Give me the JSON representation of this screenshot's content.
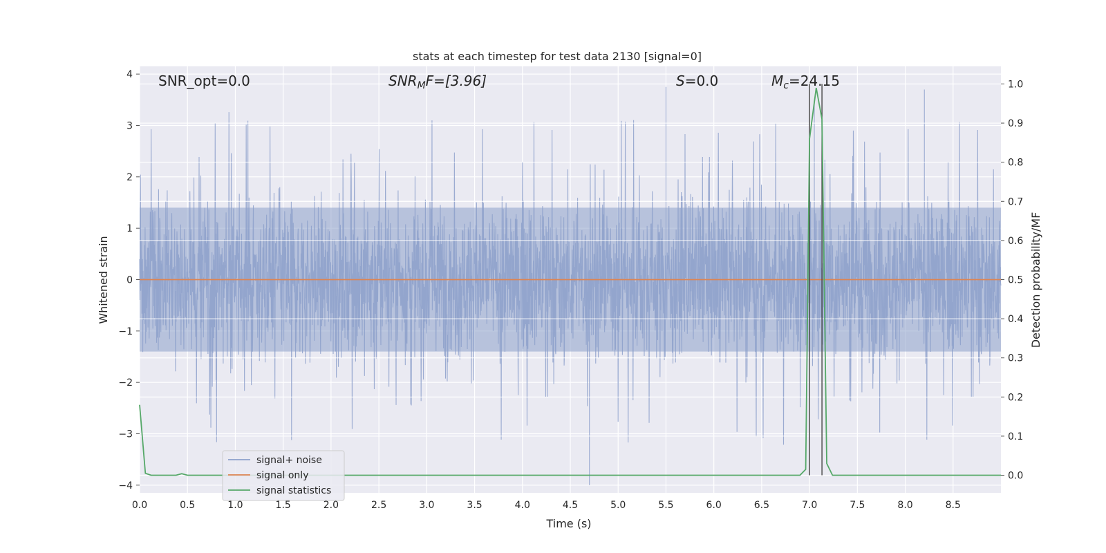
{
  "chart_data": {
    "type": "line",
    "title": "stats at each timestep for test data 2130 [signal=0]",
    "xlabel": "Time (s)",
    "ylabel_left": "Whitened strain",
    "ylabel_right": "Detection probability/MF",
    "xlim": [
      0.0,
      9.0
    ],
    "ylim_left": [
      -4.15,
      4.15
    ],
    "ylim_right": [
      -0.045,
      1.045
    ],
    "x_ticks": [
      "0.0",
      "0.5",
      "1.0",
      "1.5",
      "2.0",
      "2.5",
      "3.0",
      "3.5",
      "4.0",
      "4.5",
      "5.0",
      "5.5",
      "6.0",
      "6.5",
      "7.0",
      "7.5",
      "8.0",
      "8.5"
    ],
    "y_ticks_left": [
      "−4",
      "−3",
      "−2",
      "−1",
      "0",
      "1",
      "2",
      "3",
      "4"
    ],
    "y_ticks_right": [
      "0.0",
      "0.1",
      "0.2",
      "0.3",
      "0.4",
      "0.5",
      "0.6",
      "0.7",
      "0.8",
      "0.9",
      "1.0"
    ],
    "grid": true,
    "legend_position": "lower-left",
    "annotations": [
      {
        "id": "snr-opt",
        "text": "SNR_opt=0.0"
      },
      {
        "id": "snr-mf",
        "prefix": "SNR",
        "sub": "M",
        "suffix": "F=[3.96]"
      },
      {
        "id": "s-val",
        "prefix": "S",
        "suffix": "=0.0"
      },
      {
        "id": "mc-val",
        "prefix": "M",
        "sub": "c",
        "suffix": "=24.15"
      }
    ],
    "vertical_lines_x": [
      7.0,
      7.13
    ],
    "series": [
      {
        "name": "signal+ noise",
        "axis": "left",
        "color": "#8da0cb",
        "style": "noise",
        "note_values": "dense whitened noise, core amplitude about ±1.4 with spikes reaching about ±3.3 (max 3.75, min -4.0 at x≈4.7)"
      },
      {
        "name": "signal only",
        "axis": "left",
        "color": "#dd8452",
        "x": [
          0.0,
          9.0
        ],
        "y": [
          0.0,
          0.0
        ]
      },
      {
        "name": "signal statistics",
        "axis": "right",
        "color": "#55a868",
        "x": [
          0.0,
          0.06,
          0.12,
          0.2,
          0.3,
          0.38,
          0.44,
          0.5,
          1.0,
          2.0,
          3.0,
          4.0,
          5.0,
          6.0,
          6.9,
          6.96,
          7.0,
          7.07,
          7.13,
          7.18,
          7.24,
          7.5,
          8.0,
          8.5,
          9.0
        ],
        "y": [
          0.18,
          0.005,
          0.0,
          0.0,
          0.0,
          0.0,
          0.004,
          0.0,
          0.0,
          0.0,
          0.0,
          0.0,
          0.0,
          0.0,
          0.0,
          0.015,
          0.86,
          0.99,
          0.91,
          0.03,
          0.0,
          0.0,
          0.0,
          0.0,
          0.0
        ]
      }
    ]
  }
}
